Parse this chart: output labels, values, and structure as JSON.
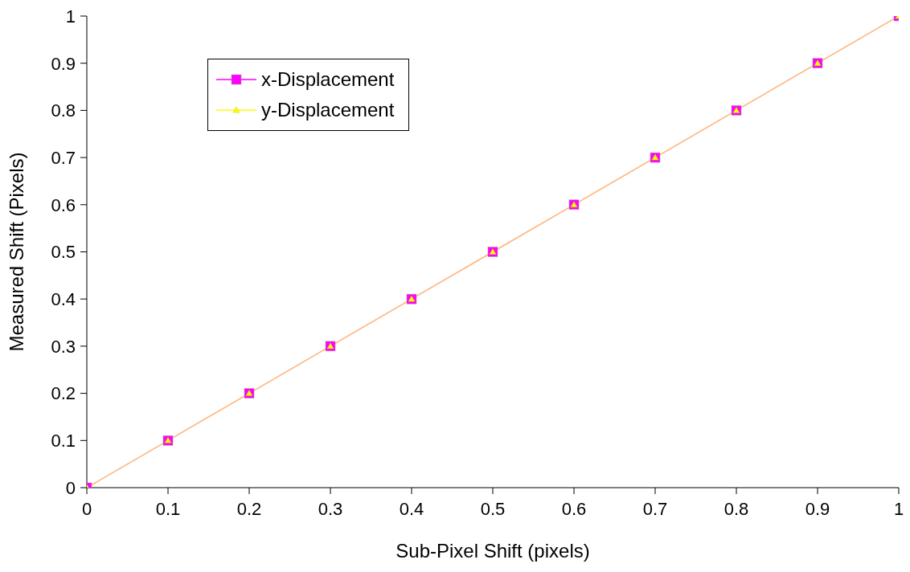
{
  "chart_data": {
    "type": "line",
    "xlabel": "Sub-Pixel Shift (pixels)",
    "ylabel": "Measured Shift (Pixels)",
    "x": [
      0,
      0.1,
      0.2,
      0.3,
      0.4,
      0.5,
      0.6,
      0.7,
      0.8,
      0.9,
      1
    ],
    "series": [
      {
        "name": "x-Displacement",
        "color": "#ff00ff",
        "marker": "square",
        "values": [
          0,
          0.1,
          0.2,
          0.3,
          0.4,
          0.5,
          0.6,
          0.7,
          0.8,
          0.9,
          1
        ]
      },
      {
        "name": "y-Displacement",
        "color": "#ffff00",
        "marker": "triangle",
        "values": [
          0,
          0.1,
          0.2,
          0.3,
          0.4,
          0.5,
          0.6,
          0.7,
          0.8,
          0.9,
          1
        ]
      }
    ],
    "xlim": [
      0,
      1
    ],
    "xticks": [
      0,
      0.1,
      0.2,
      0.3,
      0.4,
      0.5,
      0.6,
      0.7,
      0.8,
      0.9,
      1
    ],
    "ylim": [
      0,
      1
    ],
    "yticks": [
      0,
      0.1,
      0.2,
      0.3,
      0.4,
      0.5,
      0.6,
      0.7,
      0.8,
      0.9,
      1
    ],
    "grid": false,
    "legend": "top left",
    "line_style": "solid"
  }
}
